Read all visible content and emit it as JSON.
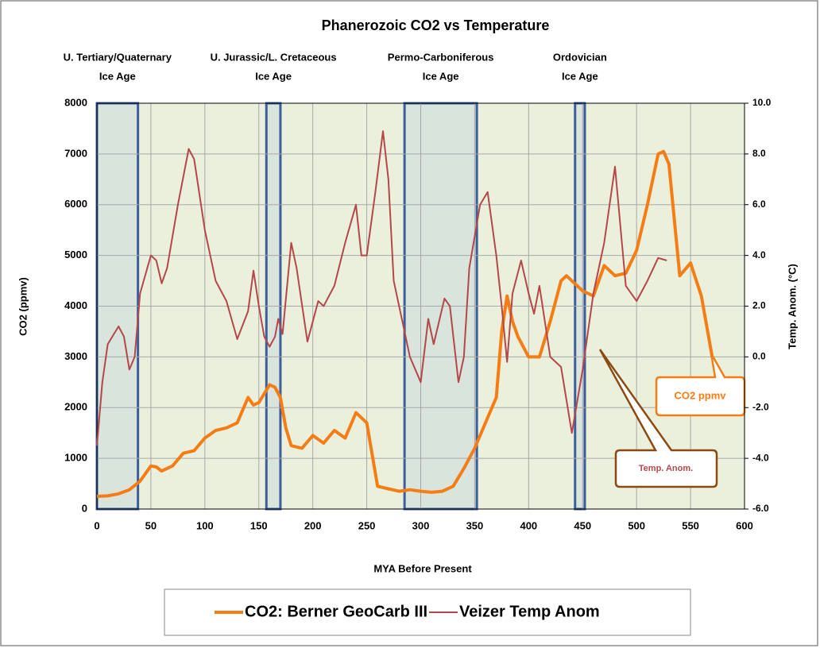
{
  "chart_data": {
    "type": "line",
    "title": "Phanerozoic CO2 vs Temperature",
    "xlabel": "MYA Before Present",
    "ylabel": "CO2 (ppmv)",
    "y2label": "Temp. Anom. (°C)",
    "xlim": [
      0,
      600
    ],
    "xticks": [
      0,
      50,
      100,
      150,
      200,
      250,
      300,
      350,
      400,
      450,
      500,
      550,
      600
    ],
    "ylim": [
      0,
      8000
    ],
    "yticks": [
      0,
      1000,
      2000,
      3000,
      4000,
      5000,
      6000,
      7000,
      8000
    ],
    "y2lim": [
      -6,
      10
    ],
    "y2ticks": [
      {
        "value": 10,
        "label": "10.0"
      },
      {
        "value": 8,
        "label": "8.0"
      },
      {
        "value": 6,
        "label": "6.0"
      },
      {
        "value": 4,
        "label": "4.0"
      },
      {
        "value": 2,
        "label": "2.0"
      },
      {
        "value": 0,
        "label": "0.0"
      },
      {
        "value": -2,
        "label": "-2.0"
      },
      {
        "value": -4,
        "label": "-4.0"
      },
      {
        "value": -6,
        "label": "-6.0"
      }
    ],
    "grid": true,
    "legend": "bottom",
    "regions": [
      {
        "label": [
          "U. Tertiary/Quaternary",
          "Ice Age"
        ],
        "start": 0,
        "end": 38
      },
      {
        "label": [
          "U. Jurassic/L. Cretaceous",
          "Ice Age"
        ],
        "start": 157,
        "end": 170
      },
      {
        "label": [
          "Permo-Carboniferous",
          "Ice Age"
        ],
        "start": 285,
        "end": 352
      },
      {
        "label": [
          "Ordovician",
          "Ice Age"
        ],
        "start": 443,
        "end": 452
      }
    ],
    "annotations": [
      "CO2 ppmv",
      "Temp. Anom."
    ],
    "series": [
      {
        "name": "CO2: Berner GeoCarb III",
        "color": "#f57d15",
        "x": [
          0,
          10,
          20,
          30,
          40,
          50,
          55,
          60,
          70,
          80,
          90,
          100,
          110,
          120,
          130,
          140,
          145,
          150,
          160,
          165,
          170,
          175,
          180,
          190,
          200,
          210,
          220,
          230,
          240,
          250,
          260,
          270,
          280,
          290,
          300,
          310,
          320,
          330,
          340,
          350,
          360,
          370,
          375,
          380,
          385,
          390,
          400,
          410,
          420,
          430,
          435,
          440,
          450,
          460,
          470,
          480,
          490,
          500,
          510,
          520,
          525,
          530,
          540,
          550,
          560,
          570
        ],
        "values": [
          250,
          260,
          300,
          380,
          550,
          850,
          830,
          750,
          850,
          1100,
          1150,
          1400,
          1550,
          1600,
          1700,
          2200,
          2050,
          2100,
          2450,
          2400,
          2200,
          1600,
          1250,
          1200,
          1450,
          1300,
          1550,
          1400,
          1900,
          1700,
          450,
          400,
          350,
          380,
          350,
          330,
          350,
          450,
          800,
          1200,
          1700,
          2200,
          3500,
          4200,
          3700,
          3400,
          3000,
          3000,
          3700,
          4500,
          4600,
          4500,
          4300,
          4200,
          4800,
          4600,
          4650,
          5100,
          6000,
          7000,
          7050,
          6800,
          4600,
          4850,
          4200,
          3000
        ]
      },
      {
        "name": "Veizer Temp Anom",
        "color": "#b5474a",
        "axis": "y2",
        "x": [
          0,
          5,
          10,
          20,
          25,
          30,
          35,
          40,
          50,
          55,
          60,
          65,
          75,
          85,
          90,
          100,
          110,
          120,
          130,
          140,
          145,
          150,
          155,
          160,
          165,
          168,
          172,
          180,
          185,
          195,
          205,
          210,
          220,
          230,
          240,
          245,
          250,
          258,
          265,
          270,
          275,
          290,
          300,
          307,
          312,
          322,
          327,
          335,
          340,
          345,
          355,
          362,
          370,
          375,
          380,
          385,
          393,
          400,
          405,
          410,
          420,
          430,
          440,
          450,
          460,
          470,
          480,
          490,
          500,
          510,
          520,
          528
        ],
        "values": [
          -3.5,
          -1,
          0.5,
          1.2,
          0.8,
          -0.5,
          0,
          2.5,
          4,
          3.8,
          2.9,
          3.5,
          6,
          8.2,
          7.8,
          5,
          3,
          2.2,
          0.7,
          1.8,
          3.4,
          2,
          0.8,
          0.4,
          0.8,
          1.5,
          0.9,
          4.5,
          3.5,
          0.6,
          2.2,
          2,
          2.8,
          4.5,
          6,
          4,
          4,
          6.5,
          8.9,
          7,
          3,
          0,
          -1,
          1.5,
          0.5,
          2.3,
          2,
          -1,
          0,
          3.5,
          6,
          6.5,
          4,
          2,
          -0.2,
          2.5,
          3.8,
          2.5,
          1.7,
          2.8,
          0,
          -0.4,
          -3,
          -0.5,
          2.5,
          4.5,
          7.5,
          2.8,
          2.2,
          3,
          3.9,
          3.8
        ]
      }
    ]
  }
}
